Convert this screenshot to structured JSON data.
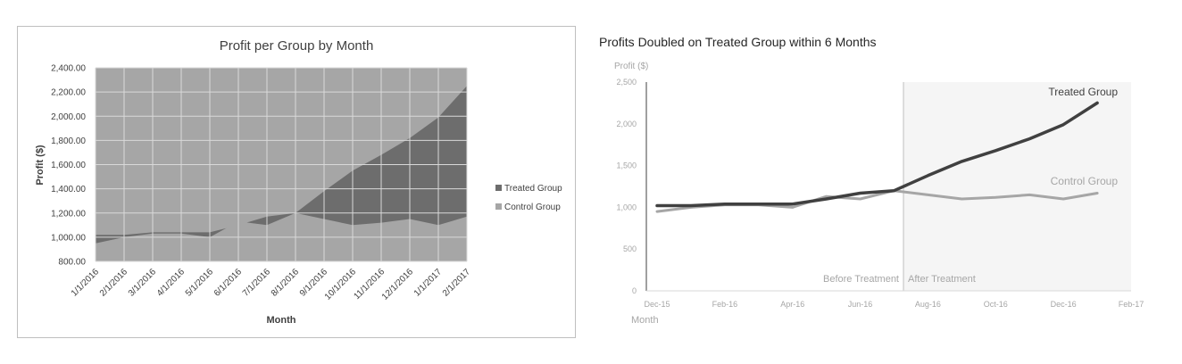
{
  "chart_data": [
    {
      "type": "area",
      "title": "Profit per Group by Month",
      "xlabel": "Month",
      "ylabel": "Profit ($)",
      "ylim": [
        800,
        2400
      ],
      "yticks": [
        "800.00",
        "1,000.00",
        "1,200.00",
        "1,400.00",
        "1,600.00",
        "1,800.00",
        "2,000.00",
        "2,200.00",
        "2,400.00"
      ],
      "categories": [
        "1/1/2016",
        "2/1/2016",
        "3/1/2016",
        "4/1/2016",
        "5/1/2016",
        "6/1/2016",
        "7/1/2016",
        "8/1/2016",
        "9/1/2016",
        "10/1/2016",
        "11/1/2016",
        "12/1/2016",
        "1/1/2017",
        "2/1/2017"
      ],
      "grid": true,
      "legend": "right",
      "series": [
        {
          "name": "Treated Group",
          "color": "#6d6d6d",
          "values": [
            1020,
            1020,
            1040,
            1040,
            1040,
            1100,
            1170,
            1200,
            1380,
            1550,
            1680,
            1820,
            1990,
            2250
          ]
        },
        {
          "name": "Control Group",
          "color": "#a6a6a6",
          "values": [
            950,
            1000,
            1030,
            1030,
            1000,
            1130,
            1100,
            1200,
            1150,
            1100,
            1120,
            1150,
            1100,
            1170
          ]
        }
      ],
      "plot_bg": "#a6a6a6"
    },
    {
      "type": "line",
      "title": "Profits Doubled on Treated Group within 6 Months",
      "xlabel": "Month",
      "ylabel": "Profit ($)",
      "ylim": [
        0,
        2500
      ],
      "yticks": [
        "0",
        "500",
        "1,000",
        "1,500",
        "2,000",
        "2,500"
      ],
      "x": [
        "Dec-15",
        "Jan-16",
        "Feb-16",
        "Mar-16",
        "Apr-16",
        "May-16",
        "Jun-16",
        "Jul-16",
        "Aug-16",
        "Sep-16",
        "Oct-16",
        "Nov-16",
        "Dec-16",
        "Jan-17",
        "Feb-17"
      ],
      "xticks": [
        "Dec-15",
        "Feb-16",
        "Apr-16",
        "Jun-16",
        "Aug-16",
        "Oct-16",
        "Dec-16",
        "Feb-17"
      ],
      "grid": false,
      "series": [
        {
          "name": "Treated Group",
          "color": "#404040",
          "values": [
            1020,
            1020,
            1040,
            1040,
            1040,
            1100,
            1170,
            1200,
            1380,
            1550,
            1680,
            1820,
            1990,
            2250,
            null
          ]
        },
        {
          "name": "Control Group",
          "color": "#a6a6a6",
          "values": [
            950,
            1000,
            1030,
            1030,
            1000,
            1130,
            1100,
            1200,
            1150,
            1100,
            1120,
            1150,
            1100,
            1170,
            null
          ]
        }
      ],
      "annotations": {
        "before": "Before Treatment",
        "after": "After Treatment",
        "treatment_start": "Jul-16"
      },
      "shade_color": "#f5f5f5"
    }
  ]
}
